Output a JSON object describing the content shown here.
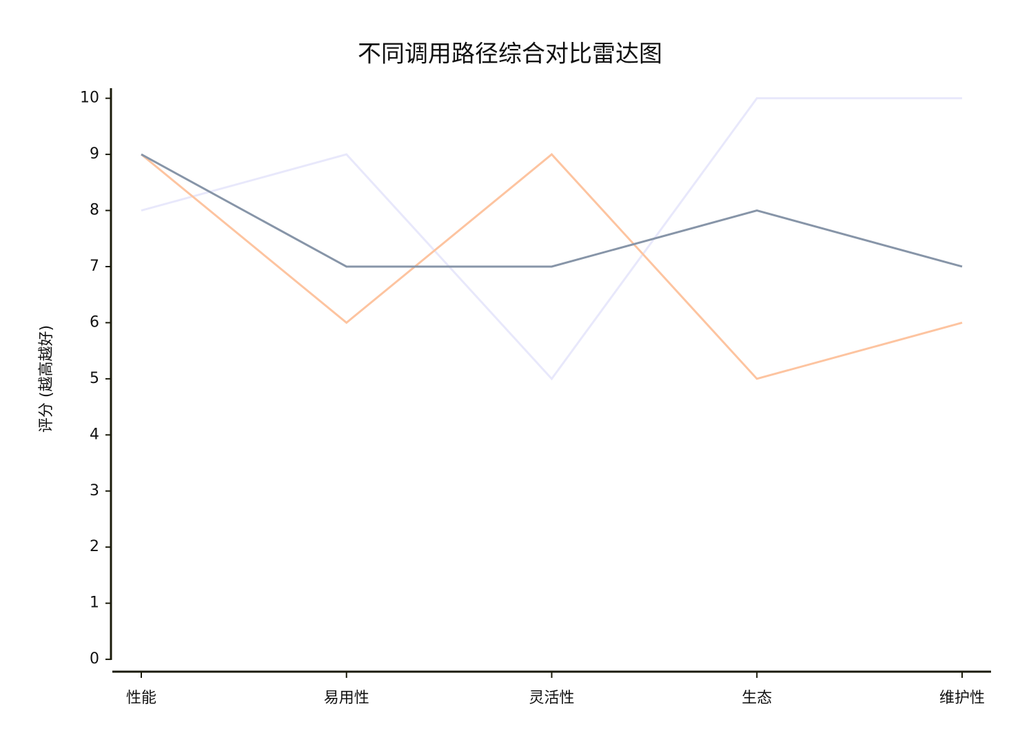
{
  "chart_data": {
    "type": "line",
    "title": "不同调用路径综合对比雷达图",
    "y_label": "评分 (越高越好)",
    "categories": [
      "性能",
      "易用性",
      "灵活性",
      "生态",
      "维护性"
    ],
    "series": [
      {
        "color": "#8795a8",
        "values": [
          9,
          7,
          7,
          8,
          7
        ]
      },
      {
        "color": "#fdc4a0",
        "values": [
          9,
          6,
          9,
          5,
          6
        ]
      },
      {
        "color": "#e8e8fb",
        "values": [
          8,
          9,
          5,
          10,
          10
        ]
      }
    ],
    "ylim": [
      -0.22,
      10.18
    ],
    "yticks": [
      0,
      1,
      2,
      3,
      4,
      5,
      6,
      7,
      8,
      9,
      10
    ],
    "grid": false
  }
}
